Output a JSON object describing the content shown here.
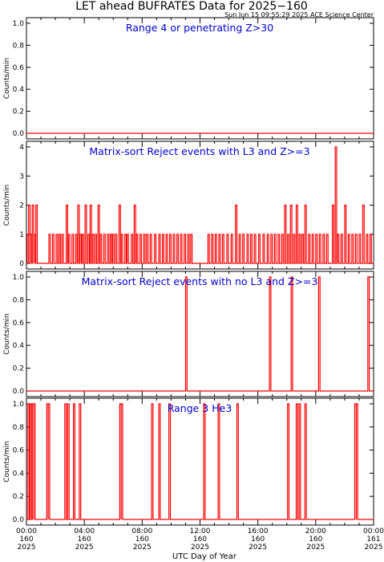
{
  "title": "LET ahead BUFRATES Data for 2025−160",
  "timestamp": "Sun Jun 15 09:55:29 2025 ACE Science Center",
  "xlabel": "UTC Day of Year",
  "x_ticks": [
    {
      "time": "00:00",
      "doy": "160",
      "year": "2025"
    },
    {
      "time": "04:00",
      "doy": "160",
      "year": "2025"
    },
    {
      "time": "08:00",
      "doy": "160",
      "year": "2025"
    },
    {
      "time": "12:00",
      "doy": "160",
      "year": "2025"
    },
    {
      "time": "16:00",
      "doy": "160",
      "year": "2025"
    },
    {
      "time": "20:00",
      "doy": "160",
      "year": "2025"
    },
    {
      "time": "00:00",
      "doy": "161",
      "year": "2025"
    }
  ],
  "colors": {
    "data": "#ff0000",
    "panel_title": "#0000cc",
    "axes": "#000000",
    "background": "#ffffff"
  },
  "chart_data": [
    {
      "type": "line",
      "title": "Range 4 or  penetrating Z>30",
      "ylabel": "Counts/min",
      "xlim": [
        0,
        24
      ],
      "ylim": [
        0,
        1.0
      ],
      "yticks": [
        "0.0",
        "0.2",
        "0.4",
        "0.6",
        "0.8",
        "1.0"
      ],
      "x_hours": [
        0,
        24
      ],
      "values": [
        0,
        0
      ]
    },
    {
      "type": "line",
      "title": "Matrix-sort Reject events with L3 and Z>=3",
      "ylabel": "Counts/min",
      "xlim": [
        0,
        24
      ],
      "ylim": [
        0,
        4
      ],
      "yticks": [
        "0",
        "1",
        "2",
        "3",
        "4"
      ],
      "baseline": 0,
      "spikes": [
        {
          "h": 0.1,
          "v": 1
        },
        {
          "h": 0.2,
          "v": 2
        },
        {
          "h": 0.3,
          "v": 1
        },
        {
          "h": 0.45,
          "v": 2
        },
        {
          "h": 0.55,
          "v": 1
        },
        {
          "h": 0.7,
          "v": 2
        },
        {
          "h": 1.6,
          "v": 1
        },
        {
          "h": 1.85,
          "v": 1
        },
        {
          "h": 2.1,
          "v": 1
        },
        {
          "h": 2.3,
          "v": 1
        },
        {
          "h": 2.5,
          "v": 1
        },
        {
          "h": 2.8,
          "v": 2
        },
        {
          "h": 2.95,
          "v": 1
        },
        {
          "h": 3.2,
          "v": 1
        },
        {
          "h": 3.45,
          "v": 1
        },
        {
          "h": 3.6,
          "v": 2
        },
        {
          "h": 3.75,
          "v": 1
        },
        {
          "h": 3.9,
          "v": 1
        },
        {
          "h": 4.1,
          "v": 2
        },
        {
          "h": 4.3,
          "v": 1
        },
        {
          "h": 4.45,
          "v": 2
        },
        {
          "h": 4.6,
          "v": 1
        },
        {
          "h": 4.8,
          "v": 1
        },
        {
          "h": 5.0,
          "v": 2
        },
        {
          "h": 5.15,
          "v": 1
        },
        {
          "h": 5.4,
          "v": 1
        },
        {
          "h": 5.65,
          "v": 1
        },
        {
          "h": 5.85,
          "v": 1
        },
        {
          "h": 6.0,
          "v": 1
        },
        {
          "h": 6.2,
          "v": 1
        },
        {
          "h": 6.45,
          "v": 2
        },
        {
          "h": 6.6,
          "v": 1
        },
        {
          "h": 6.85,
          "v": 1
        },
        {
          "h": 7.0,
          "v": 1
        },
        {
          "h": 7.3,
          "v": 1
        },
        {
          "h": 7.5,
          "v": 2
        },
        {
          "h": 7.65,
          "v": 1
        },
        {
          "h": 7.9,
          "v": 1
        },
        {
          "h": 8.15,
          "v": 1
        },
        {
          "h": 8.35,
          "v": 1
        },
        {
          "h": 8.6,
          "v": 1
        },
        {
          "h": 8.9,
          "v": 1
        },
        {
          "h": 9.2,
          "v": 1
        },
        {
          "h": 9.45,
          "v": 1
        },
        {
          "h": 9.7,
          "v": 1
        },
        {
          "h": 9.95,
          "v": 1
        },
        {
          "h": 10.2,
          "v": 1
        },
        {
          "h": 10.45,
          "v": 1
        },
        {
          "h": 10.7,
          "v": 1
        },
        {
          "h": 10.95,
          "v": 1
        },
        {
          "h": 11.2,
          "v": 1
        },
        {
          "h": 11.4,
          "v": 1
        },
        {
          "h": 12.6,
          "v": 1
        },
        {
          "h": 12.85,
          "v": 1
        },
        {
          "h": 13.1,
          "v": 1
        },
        {
          "h": 13.35,
          "v": 1
        },
        {
          "h": 13.6,
          "v": 1
        },
        {
          "h": 13.9,
          "v": 1
        },
        {
          "h": 14.2,
          "v": 1
        },
        {
          "h": 14.5,
          "v": 2
        },
        {
          "h": 14.75,
          "v": 1
        },
        {
          "h": 15.0,
          "v": 1
        },
        {
          "h": 15.3,
          "v": 1
        },
        {
          "h": 15.55,
          "v": 1
        },
        {
          "h": 15.8,
          "v": 1
        },
        {
          "h": 16.1,
          "v": 1
        },
        {
          "h": 16.4,
          "v": 1
        },
        {
          "h": 16.7,
          "v": 1
        },
        {
          "h": 16.95,
          "v": 1
        },
        {
          "h": 17.2,
          "v": 1
        },
        {
          "h": 17.45,
          "v": 1
        },
        {
          "h": 17.7,
          "v": 1
        },
        {
          "h": 17.9,
          "v": 2
        },
        {
          "h": 18.1,
          "v": 1
        },
        {
          "h": 18.3,
          "v": 2
        },
        {
          "h": 18.5,
          "v": 1
        },
        {
          "h": 18.7,
          "v": 2
        },
        {
          "h": 18.9,
          "v": 1
        },
        {
          "h": 19.1,
          "v": 1
        },
        {
          "h": 19.3,
          "v": 2
        },
        {
          "h": 19.55,
          "v": 1
        },
        {
          "h": 19.8,
          "v": 1
        },
        {
          "h": 20.05,
          "v": 1
        },
        {
          "h": 20.3,
          "v": 1
        },
        {
          "h": 20.55,
          "v": 1
        },
        {
          "h": 20.8,
          "v": 1
        },
        {
          "h": 21.2,
          "v": 2
        },
        {
          "h": 21.4,
          "v": 4
        },
        {
          "h": 21.55,
          "v": 1
        },
        {
          "h": 21.8,
          "v": 1
        },
        {
          "h": 22.05,
          "v": 2
        },
        {
          "h": 22.3,
          "v": 1
        },
        {
          "h": 22.55,
          "v": 1
        },
        {
          "h": 22.8,
          "v": 1
        },
        {
          "h": 23.05,
          "v": 1
        },
        {
          "h": 23.3,
          "v": 2
        },
        {
          "h": 23.55,
          "v": 1
        },
        {
          "h": 23.8,
          "v": 1
        }
      ]
    },
    {
      "type": "line",
      "title": "Matrix-sort Reject events with no L3 and Z>=3",
      "ylabel": "Counts/min",
      "xlim": [
        0,
        24
      ],
      "ylim": [
        0,
        1.0
      ],
      "yticks": [
        "0.0",
        "0.2",
        "0.4",
        "0.6",
        "0.8",
        "1.0"
      ],
      "baseline": 0,
      "spikes": [
        {
          "h": 11.05,
          "v": 1
        },
        {
          "h": 16.85,
          "v": 1
        },
        {
          "h": 18.35,
          "v": 1
        },
        {
          "h": 20.25,
          "v": 1
        },
        {
          "h": 23.65,
          "v": 1
        }
      ]
    },
    {
      "type": "line",
      "title": "Range 3 He3",
      "ylabel": "Counts/min",
      "xlim": [
        0,
        24
      ],
      "ylim": [
        0,
        1.0
      ],
      "yticks": [
        "0.0",
        "0.2",
        "0.4",
        "0.6",
        "0.8",
        "1.0"
      ],
      "baseline": 0,
      "spikes": [
        {
          "h": 0.15,
          "v": 1
        },
        {
          "h": 0.3,
          "v": 1
        },
        {
          "h": 0.45,
          "v": 1
        },
        {
          "h": 0.55,
          "v": 1
        },
        {
          "h": 1.45,
          "v": 1
        },
        {
          "h": 1.55,
          "v": 1
        },
        {
          "h": 2.7,
          "v": 1
        },
        {
          "h": 2.9,
          "v": 1
        },
        {
          "h": 3.3,
          "v": 1
        },
        {
          "h": 3.7,
          "v": 1
        },
        {
          "h": 6.5,
          "v": 1
        },
        {
          "h": 6.6,
          "v": 1
        },
        {
          "h": 8.7,
          "v": 1
        },
        {
          "h": 9.2,
          "v": 1
        },
        {
          "h": 9.9,
          "v": 1
        },
        {
          "h": 12.3,
          "v": 1
        },
        {
          "h": 13.3,
          "v": 1
        },
        {
          "h": 14.6,
          "v": 1
        },
        {
          "h": 18.1,
          "v": 1
        },
        {
          "h": 18.7,
          "v": 1
        },
        {
          "h": 18.9,
          "v": 1
        },
        {
          "h": 19.3,
          "v": 1
        },
        {
          "h": 22.75,
          "v": 1
        },
        {
          "h": 22.85,
          "v": 1
        }
      ]
    }
  ]
}
